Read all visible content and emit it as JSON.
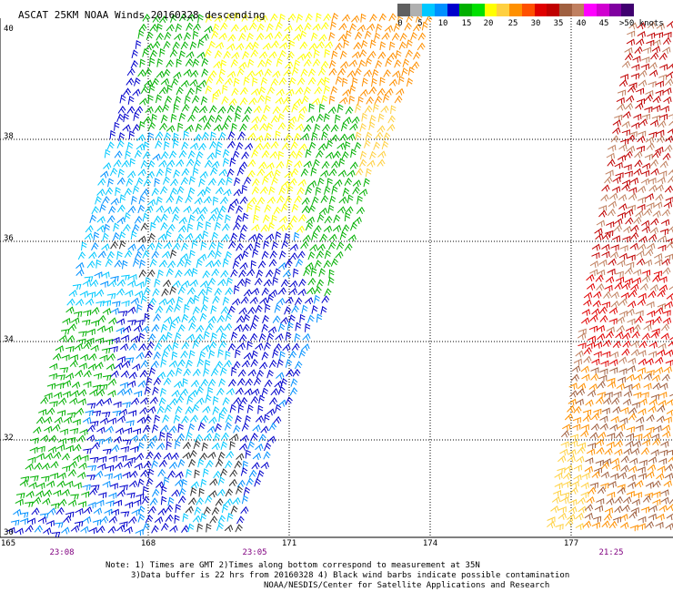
{
  "title": "ASCAT 25KM NOAA Winds 20160328 descending",
  "legend": {
    "labels": [
      "0",
      "5",
      "10",
      "15",
      "20",
      "25",
      "30",
      "35",
      "40",
      "45",
      ">50 knots"
    ],
    "colors": [
      "#606060",
      "#b0b0b0",
      "#00c8ff",
      "#0090ff",
      "#0000cc",
      "#00b000",
      "#00e000",
      "#ffff00",
      "#ffd040",
      "#ff9000",
      "#ff5000",
      "#e00000",
      "#c00000",
      "#a06040",
      "#c08060",
      "#ff00ff",
      "#d000d0",
      "#8000a0",
      "#400070"
    ]
  },
  "map": {
    "lat_labels": [
      "40",
      "38",
      "36",
      "34",
      "32",
      "30"
    ],
    "lon_labels": [
      "165",
      "168",
      "171",
      "174",
      "177"
    ],
    "pass_times": [
      "23:08",
      "23:05",
      "21:25"
    ]
  },
  "notes": {
    "line1": "Note: 1) Times are GMT 2)Times along bottom correspond to measurement at 35N",
    "line2": "3)Data buffer is 22 hrs from 20160328 4) Black wind barbs indicate possible contamination",
    "line3": "NOAA/NESDIS/Center for Satellite Applications and Research"
  }
}
